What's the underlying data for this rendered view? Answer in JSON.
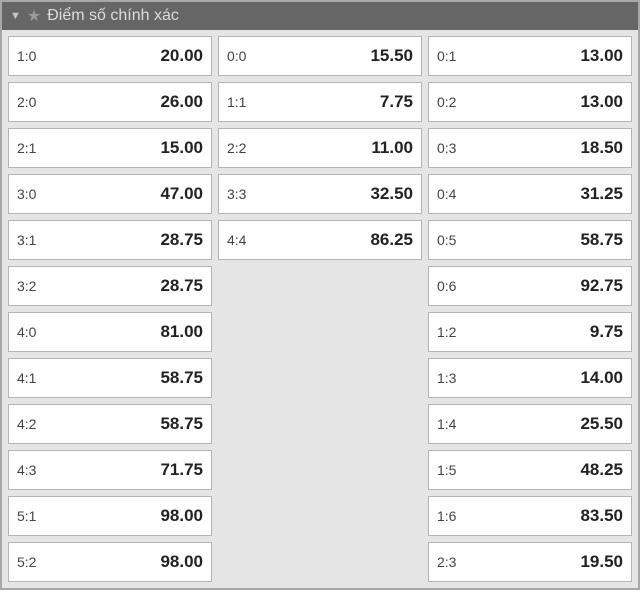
{
  "header": {
    "title": "Điểm số chính xác"
  },
  "columns": [
    [
      {
        "score": "1:0",
        "odds": "20.00"
      },
      {
        "score": "2:0",
        "odds": "26.00"
      },
      {
        "score": "2:1",
        "odds": "15.00"
      },
      {
        "score": "3:0",
        "odds": "47.00"
      },
      {
        "score": "3:1",
        "odds": "28.75"
      },
      {
        "score": "3:2",
        "odds": "28.75"
      },
      {
        "score": "4:0",
        "odds": "81.00"
      },
      {
        "score": "4:1",
        "odds": "58.75"
      },
      {
        "score": "4:2",
        "odds": "58.75"
      },
      {
        "score": "4:3",
        "odds": "71.75"
      },
      {
        "score": "5:1",
        "odds": "98.00"
      },
      {
        "score": "5:2",
        "odds": "98.00"
      }
    ],
    [
      {
        "score": "0:0",
        "odds": "15.50"
      },
      {
        "score": "1:1",
        "odds": "7.75"
      },
      {
        "score": "2:2",
        "odds": "11.00"
      },
      {
        "score": "3:3",
        "odds": "32.50"
      },
      {
        "score": "4:4",
        "odds": "86.25"
      }
    ],
    [
      {
        "score": "0:1",
        "odds": "13.00"
      },
      {
        "score": "0:2",
        "odds": "13.00"
      },
      {
        "score": "0:3",
        "odds": "18.50"
      },
      {
        "score": "0:4",
        "odds": "31.25"
      },
      {
        "score": "0:5",
        "odds": "58.75"
      },
      {
        "score": "0:6",
        "odds": "92.75"
      },
      {
        "score": "1:2",
        "odds": "9.75"
      },
      {
        "score": "1:3",
        "odds": "14.00"
      },
      {
        "score": "1:4",
        "odds": "25.50"
      },
      {
        "score": "1:5",
        "odds": "48.25"
      },
      {
        "score": "1:6",
        "odds": "83.50"
      },
      {
        "score": "2:3",
        "odds": "19.50"
      }
    ]
  ]
}
